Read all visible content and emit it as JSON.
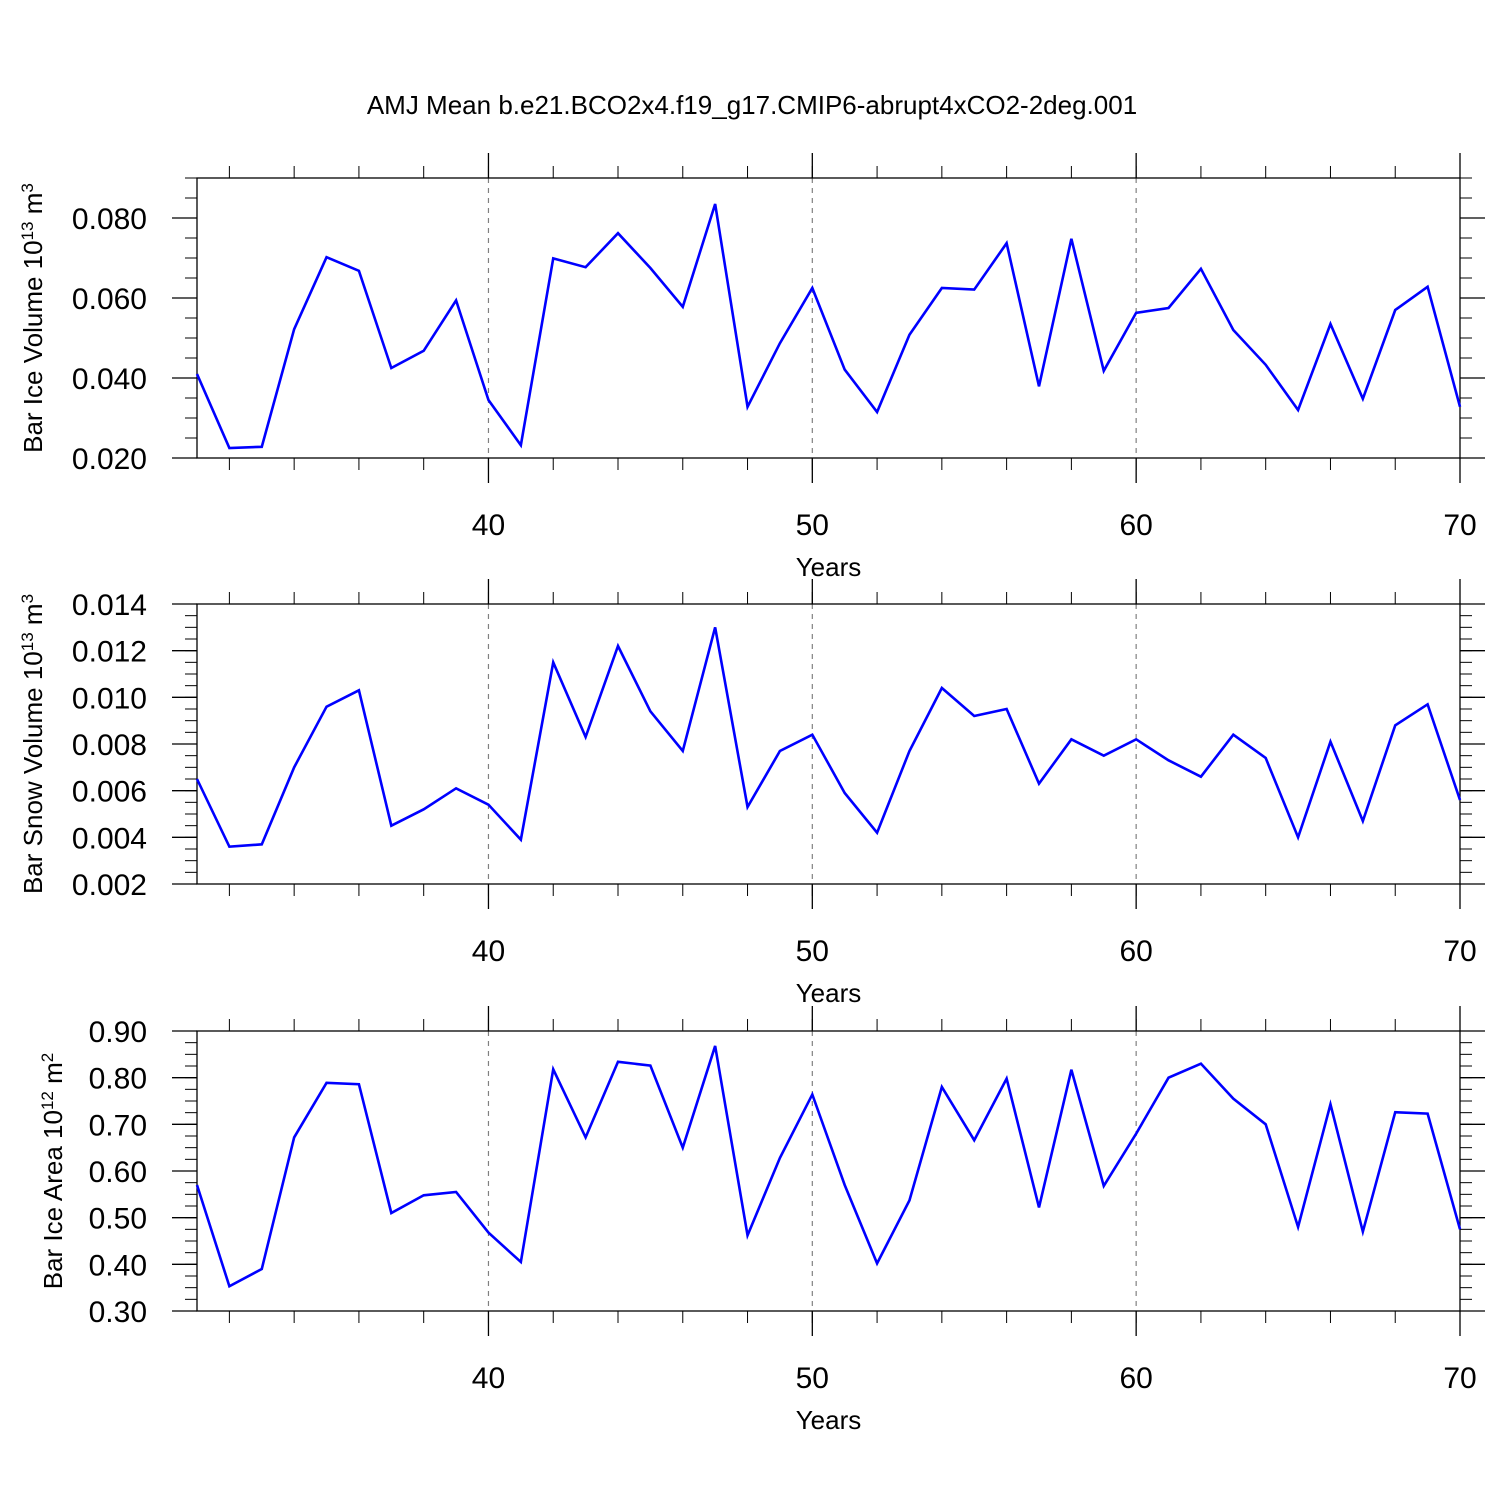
{
  "title": "AMJ Mean b.e21.BCO2x4.f19_g17.CMIP6-abrupt4xCO2-2deg.001",
  "chart_data": [
    {
      "type": "line",
      "xlabel": "Years",
      "ylabel": {
        "text": "Bar Ice Volume 10",
        "sup": "13",
        "unit": " m",
        "unit_sup": "3"
      },
      "xlim": [
        31,
        70
      ],
      "ylim": [
        0.02,
        0.09
      ],
      "xticks": [
        40,
        50,
        60,
        70
      ],
      "xtick_labels": [
        "40",
        "50",
        "60",
        "70"
      ],
      "xminor_step": 2,
      "yticks": [
        0.02,
        0.04,
        0.06,
        0.08
      ],
      "ytick_labels": [
        "0.020",
        "0.040",
        "0.060",
        "0.080"
      ],
      "yminor_step": 0.005,
      "grid": "dashed vertical at major x ticks",
      "color": "#0000ff",
      "x": [
        31,
        32,
        33,
        34,
        35,
        36,
        37,
        38,
        39,
        40,
        41,
        42,
        43,
        44,
        45,
        46,
        47,
        48,
        49,
        50,
        51,
        52,
        53,
        54,
        55,
        56,
        57,
        58,
        59,
        60,
        61,
        62,
        63,
        64,
        65,
        66,
        67,
        68,
        69,
        70
      ],
      "values": [
        0.041,
        0.0225,
        0.0228,
        0.0522,
        0.0702,
        0.0668,
        0.0425,
        0.0468,
        0.0594,
        0.0345,
        0.0232,
        0.0699,
        0.0677,
        0.0762,
        0.0675,
        0.0578,
        0.0835,
        0.0328,
        0.0487,
        0.0625,
        0.0421,
        0.0315,
        0.0508,
        0.0625,
        0.0621,
        0.0737,
        0.0379,
        0.0748,
        0.0418,
        0.0563,
        0.0575,
        0.0673,
        0.052,
        0.0433,
        0.032,
        0.0535,
        0.0348,
        0.057,
        0.0628,
        0.0328
      ]
    },
    {
      "type": "line",
      "xlabel": "Years",
      "ylabel": {
        "text": "Bar Snow Volume 10",
        "sup": "13",
        "unit": " m",
        "unit_sup": "3"
      },
      "xlim": [
        31,
        70
      ],
      "ylim": [
        0.002,
        0.014
      ],
      "xticks": [
        40,
        50,
        60,
        70
      ],
      "xtick_labels": [
        "40",
        "50",
        "60",
        "70"
      ],
      "xminor_step": 2,
      "yticks": [
        0.002,
        0.004,
        0.006,
        0.008,
        0.01,
        0.012,
        0.014
      ],
      "ytick_labels": [
        "0.002",
        "0.004",
        "0.006",
        "0.008",
        "0.010",
        "0.012",
        "0.014"
      ],
      "yminor_step": 0.0005,
      "grid": "dashed vertical at major x ticks",
      "color": "#0000ff",
      "x": [
        31,
        32,
        33,
        34,
        35,
        36,
        37,
        38,
        39,
        40,
        41,
        42,
        43,
        44,
        45,
        46,
        47,
        48,
        49,
        50,
        51,
        52,
        53,
        54,
        55,
        56,
        57,
        58,
        59,
        60,
        61,
        62,
        63,
        64,
        65,
        66,
        67,
        68,
        69,
        70
      ],
      "values": [
        0.0065,
        0.0036,
        0.0037,
        0.007,
        0.0096,
        0.0103,
        0.0045,
        0.0052,
        0.0061,
        0.0054,
        0.0039,
        0.0115,
        0.0083,
        0.0122,
        0.0094,
        0.0077,
        0.013,
        0.0053,
        0.0077,
        0.0084,
        0.0059,
        0.0042,
        0.0077,
        0.0104,
        0.0092,
        0.0095,
        0.0063,
        0.0082,
        0.0075,
        0.0082,
        0.0073,
        0.0066,
        0.0084,
        0.0074,
        0.004,
        0.0081,
        0.0047,
        0.0088,
        0.0097,
        0.0056
      ]
    },
    {
      "type": "line",
      "xlabel": "Years",
      "ylabel": {
        "text": "Bar Ice Area 10",
        "sup": "12",
        "unit": " m",
        "unit_sup": "2"
      },
      "xlim": [
        31,
        70
      ],
      "ylim": [
        0.3,
        0.9
      ],
      "xticks": [
        40,
        50,
        60,
        70
      ],
      "xtick_labels": [
        "40",
        "50",
        "60",
        "70"
      ],
      "xminor_step": 2,
      "yticks": [
        0.3,
        0.4,
        0.5,
        0.6,
        0.7,
        0.8,
        0.9
      ],
      "ytick_labels": [
        "0.30",
        "0.40",
        "0.50",
        "0.60",
        "0.70",
        "0.80",
        "0.90"
      ],
      "yminor_step": 0.025,
      "grid": "dashed vertical at major x ticks",
      "color": "#0000ff",
      "x": [
        31,
        32,
        33,
        34,
        35,
        36,
        37,
        38,
        39,
        40,
        41,
        42,
        43,
        44,
        45,
        46,
        47,
        48,
        49,
        50,
        51,
        52,
        53,
        54,
        55,
        56,
        57,
        58,
        59,
        60,
        61,
        62,
        63,
        64,
        65,
        66,
        67,
        68,
        69,
        70
      ],
      "values": [
        0.57,
        0.353,
        0.39,
        0.672,
        0.789,
        0.786,
        0.51,
        0.548,
        0.555,
        0.468,
        0.405,
        0.818,
        0.672,
        0.834,
        0.826,
        0.65,
        0.868,
        0.462,
        0.628,
        0.764,
        0.57,
        0.402,
        0.537,
        0.78,
        0.666,
        0.798,
        0.522,
        0.817,
        0.568,
        0.68,
        0.8,
        0.83,
        0.755,
        0.7,
        0.48,
        0.743,
        0.47,
        0.726,
        0.723,
        0.475
      ]
    }
  ]
}
